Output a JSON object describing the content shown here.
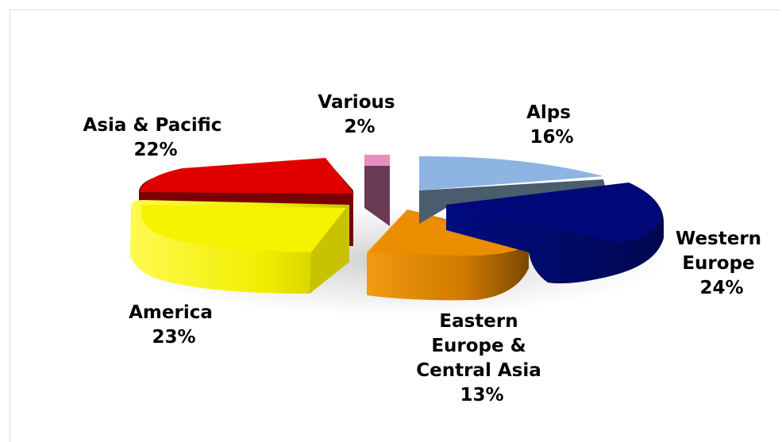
{
  "chart_data": {
    "type": "pie",
    "style": "3d-exploded",
    "slices": [
      {
        "label_lines": [
          "Alps"
        ],
        "value": 16,
        "value_text": "16%",
        "color": "#8db4e2",
        "dark": "#4a5d6e"
      },
      {
        "label_lines": [
          "Western",
          "Europe"
        ],
        "value": 24,
        "value_text": "24%",
        "color": "#000a78",
        "dark": "#00064a"
      },
      {
        "label_lines": [
          "Eastern",
          "Europe &",
          "Central Asia"
        ],
        "value": 13,
        "value_text": "13%",
        "color": "#e88a00",
        "dark": "#8a5200"
      },
      {
        "label_lines": [
          "America"
        ],
        "value": 23,
        "value_text": "23%",
        "color": "#f4f000",
        "dark": "#c8c200"
      },
      {
        "label_lines": [
          "Asia & Pacific"
        ],
        "value": 22,
        "value_text": "22%",
        "color": "#e00000",
        "dark": "#7a0000"
      },
      {
        "label_lines": [
          "Various"
        ],
        "value": 2,
        "value_text": "2%",
        "color": "#e88ec0",
        "dark": "#6a3a52"
      }
    ]
  }
}
